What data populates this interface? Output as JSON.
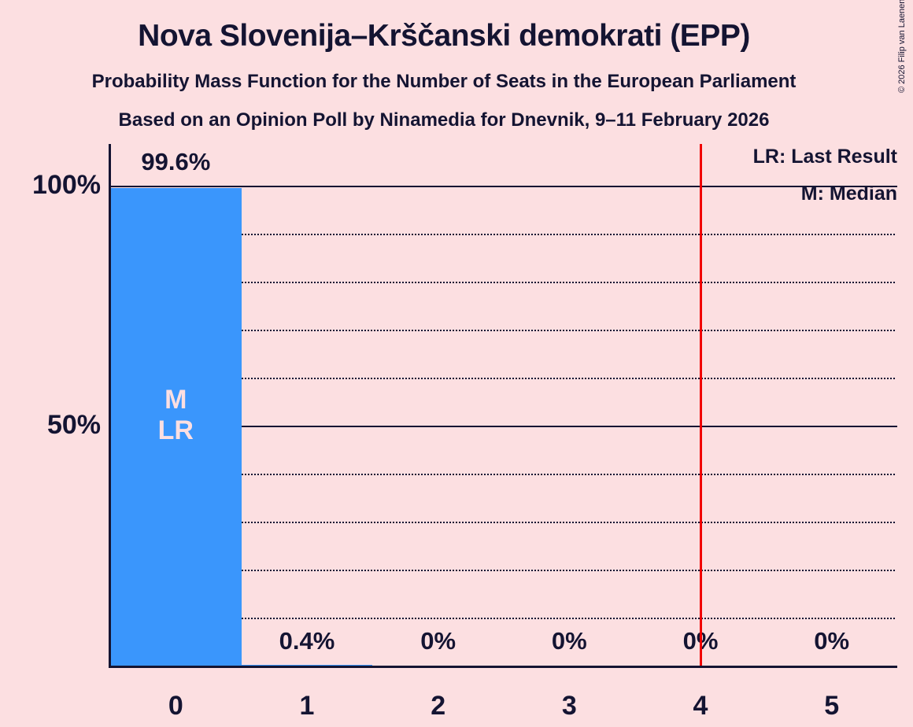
{
  "title": "Nova Slovenija–Krščanski demokrati (EPP)",
  "subtitle1": "Probability Mass Function for the Number of Seats in the European Parliament",
  "subtitle2": "Based on an Opinion Poll by Ninamedia for Dnevnik, 9–11 February 2026",
  "copyright": "© 2026 Filip van Laenen",
  "legend": {
    "last_result": "LR: Last Result",
    "median": "M: Median"
  },
  "colors": {
    "background": "#fcdfe1",
    "bar": "#3a96fc",
    "text": "#141432",
    "bar_inner_label": "#fcdfe1",
    "last_result_line": "#f10000"
  },
  "y_axis": {
    "ticks": [
      {
        "label": "100%",
        "pct": 100
      },
      {
        "label": "50%",
        "pct": 50
      }
    ]
  },
  "chart_data": {
    "type": "bar",
    "title": "Probability Mass Function for the Number of Seats in the European Parliament",
    "xlabel": "",
    "ylabel": "",
    "categories": [
      "0",
      "1",
      "2",
      "3",
      "4",
      "5"
    ],
    "values": [
      99.6,
      0.4,
      0,
      0,
      0,
      0
    ],
    "value_labels": [
      "99.6%",
      "0.4%",
      "0%",
      "0%",
      "0%",
      "0%"
    ],
    "ylim": [
      0,
      100
    ],
    "grid": {
      "dotted_pcts": [
        10,
        20,
        30,
        40,
        50,
        60,
        70,
        80,
        90,
        100
      ],
      "solid_pcts": [
        50,
        100
      ]
    },
    "median_bar_index": 0,
    "last_result_bar_index": 0,
    "bar_annotation_lines": [
      "M",
      "LR"
    ],
    "last_result_line_x": 4.5,
    "legend_position": "top-right"
  }
}
